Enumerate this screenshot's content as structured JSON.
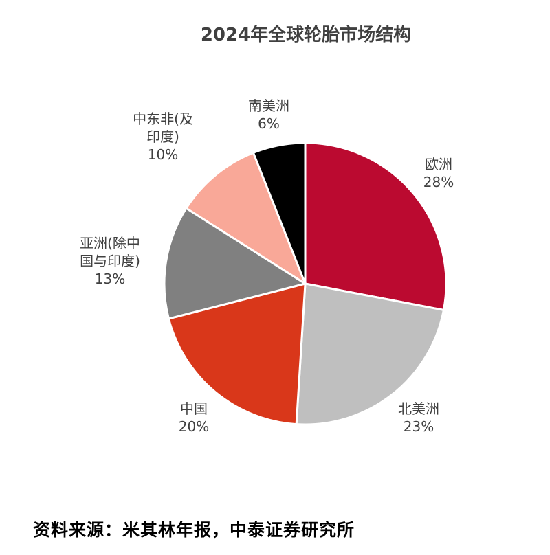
{
  "chart_data": {
    "type": "pie",
    "title": "2024年全球轮胎市场结构",
    "slices": [
      {
        "label": "欧洲",
        "value": 28,
        "value_label": "28%",
        "color": "#BB0A30"
      },
      {
        "label": "北美洲",
        "value": 23,
        "value_label": "23%",
        "color": "#BFBFBF"
      },
      {
        "label": "中国",
        "value": 20,
        "value_label": "20%",
        "color": "#D9371A"
      },
      {
        "label": "亚洲(除中\n国与印度)",
        "value": 13,
        "value_label": "13%",
        "color": "#808080"
      },
      {
        "label": "中东非(及\n印度)",
        "value": 10,
        "value_label": "10%",
        "color": "#F9A898"
      },
      {
        "label": "南美洲",
        "value": 6,
        "value_label": "6%",
        "color": "#000000"
      }
    ],
    "start_angle_deg": 0,
    "direction": "clockwise"
  },
  "source": "资料来源：米其林年报，中泰证券研究所"
}
